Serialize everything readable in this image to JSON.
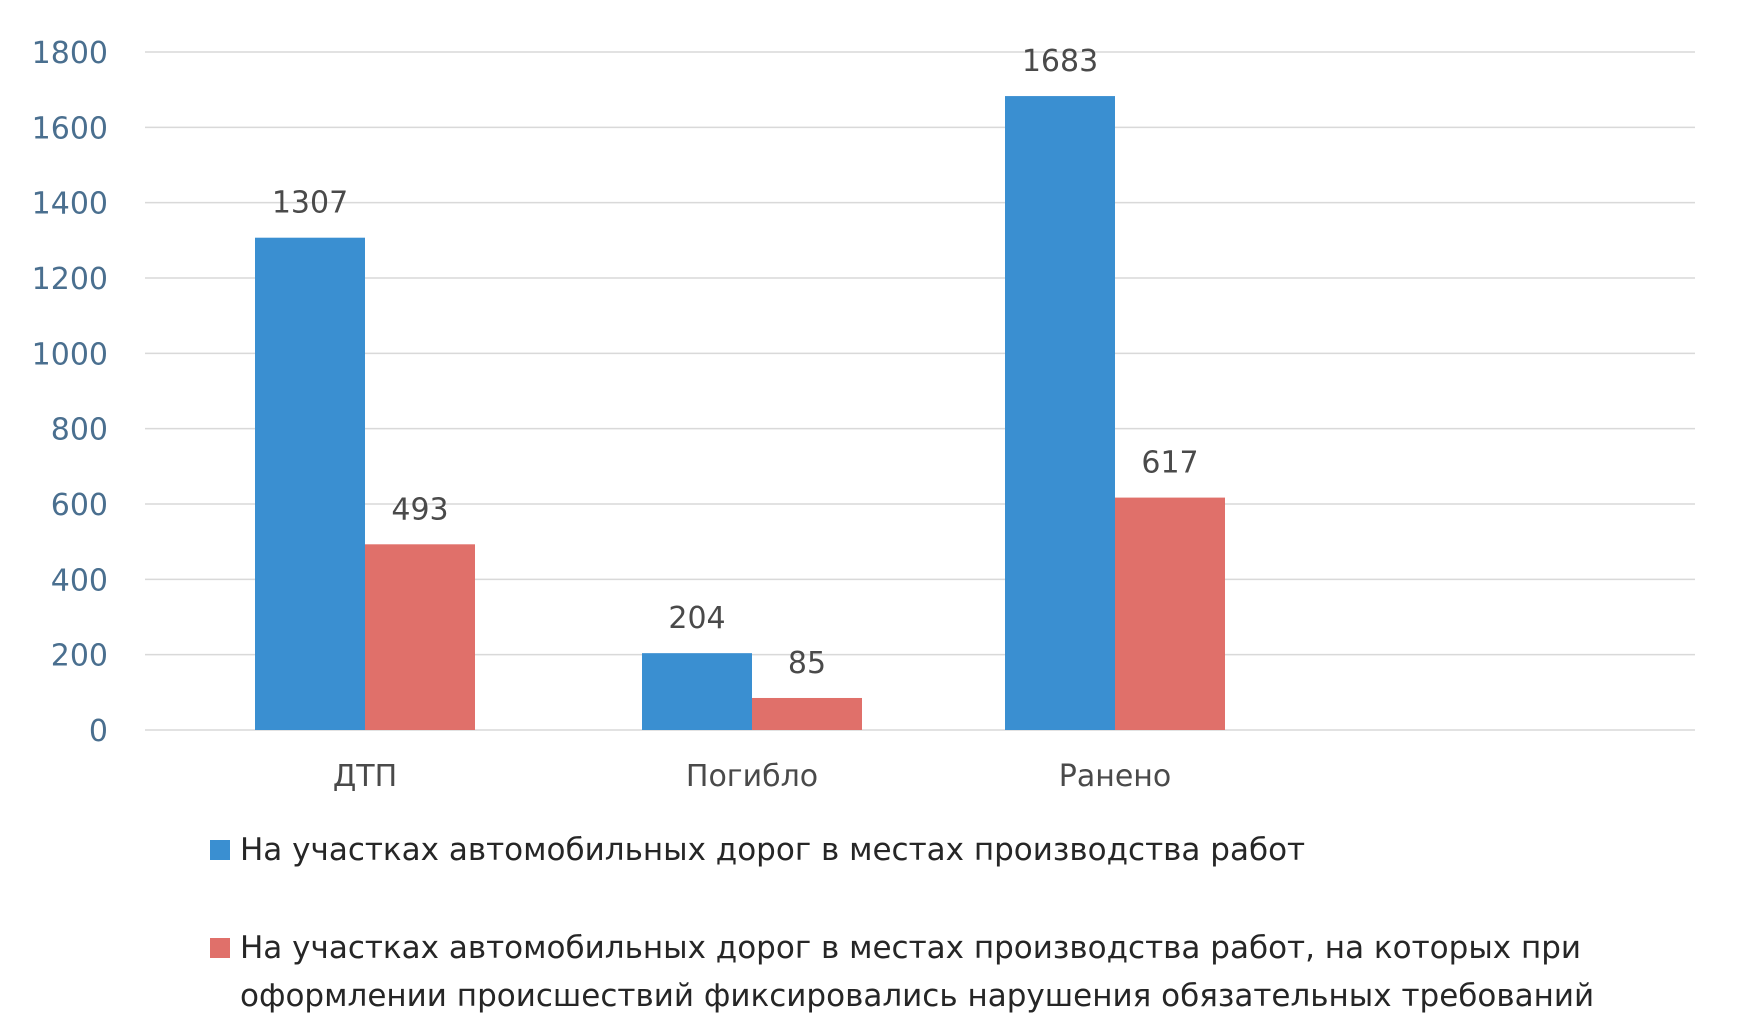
{
  "chart_data": {
    "type": "bar",
    "categories": [
      "ДТП",
      "Погибло",
      "Ранено"
    ],
    "y_ticks": [
      "0",
      "200",
      "400",
      "600",
      "800",
      "1000",
      "1200",
      "1400",
      "1600",
      "1800"
    ],
    "ylim": [
      0,
      1800
    ],
    "grid": true,
    "legend_position": "bottom",
    "series": [
      {
        "name": "На участках автомобильных дорог в местах производства работ",
        "color": "#3a8fd1",
        "values": [
          1307,
          204,
          1683
        ]
      },
      {
        "name": "На участках автомобильных дорог в местах производства работ, на которых при оформлении происшествий фиксировались нарушения обязательных требований",
        "color": "#e0706a",
        "values": [
          493,
          85,
          617
        ]
      }
    ]
  }
}
